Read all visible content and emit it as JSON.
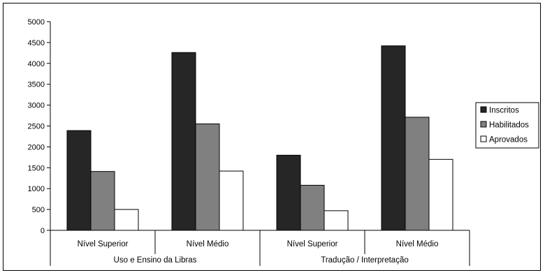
{
  "chart_data": {
    "type": "bar",
    "title": "",
    "ylabel": "",
    "xlabel": "",
    "ylim": [
      0,
      5000
    ],
    "yticks": [
      "0",
      "500",
      "1000",
      "1500",
      "2000",
      "2500",
      "3000",
      "3500",
      "4000",
      "4500",
      "5000"
    ],
    "grid": false,
    "legend_position": "right",
    "groups": [
      {
        "label": "Uso e Ensino da Libras",
        "categories": [
          "Nível Superior",
          "Nível Médio"
        ]
      },
      {
        "label": "Tradução / Interpretação",
        "categories": [
          "Nível Superior",
          "Nível Médio"
        ]
      }
    ],
    "categories": [
      "Nível Superior",
      "Nível Médio",
      "Nível Superior",
      "Nível Médio"
    ],
    "series": [
      {
        "name": "Inscritos",
        "color": "#262626",
        "values": [
          2390,
          4260,
          1800,
          4420
        ]
      },
      {
        "name": "Habilitados",
        "color": "#808080",
        "values": [
          1410,
          2550,
          1080,
          2710
        ]
      },
      {
        "name": "Aprovados",
        "color": "#ffffff",
        "values": [
          500,
          1420,
          470,
          1700
        ]
      }
    ]
  }
}
